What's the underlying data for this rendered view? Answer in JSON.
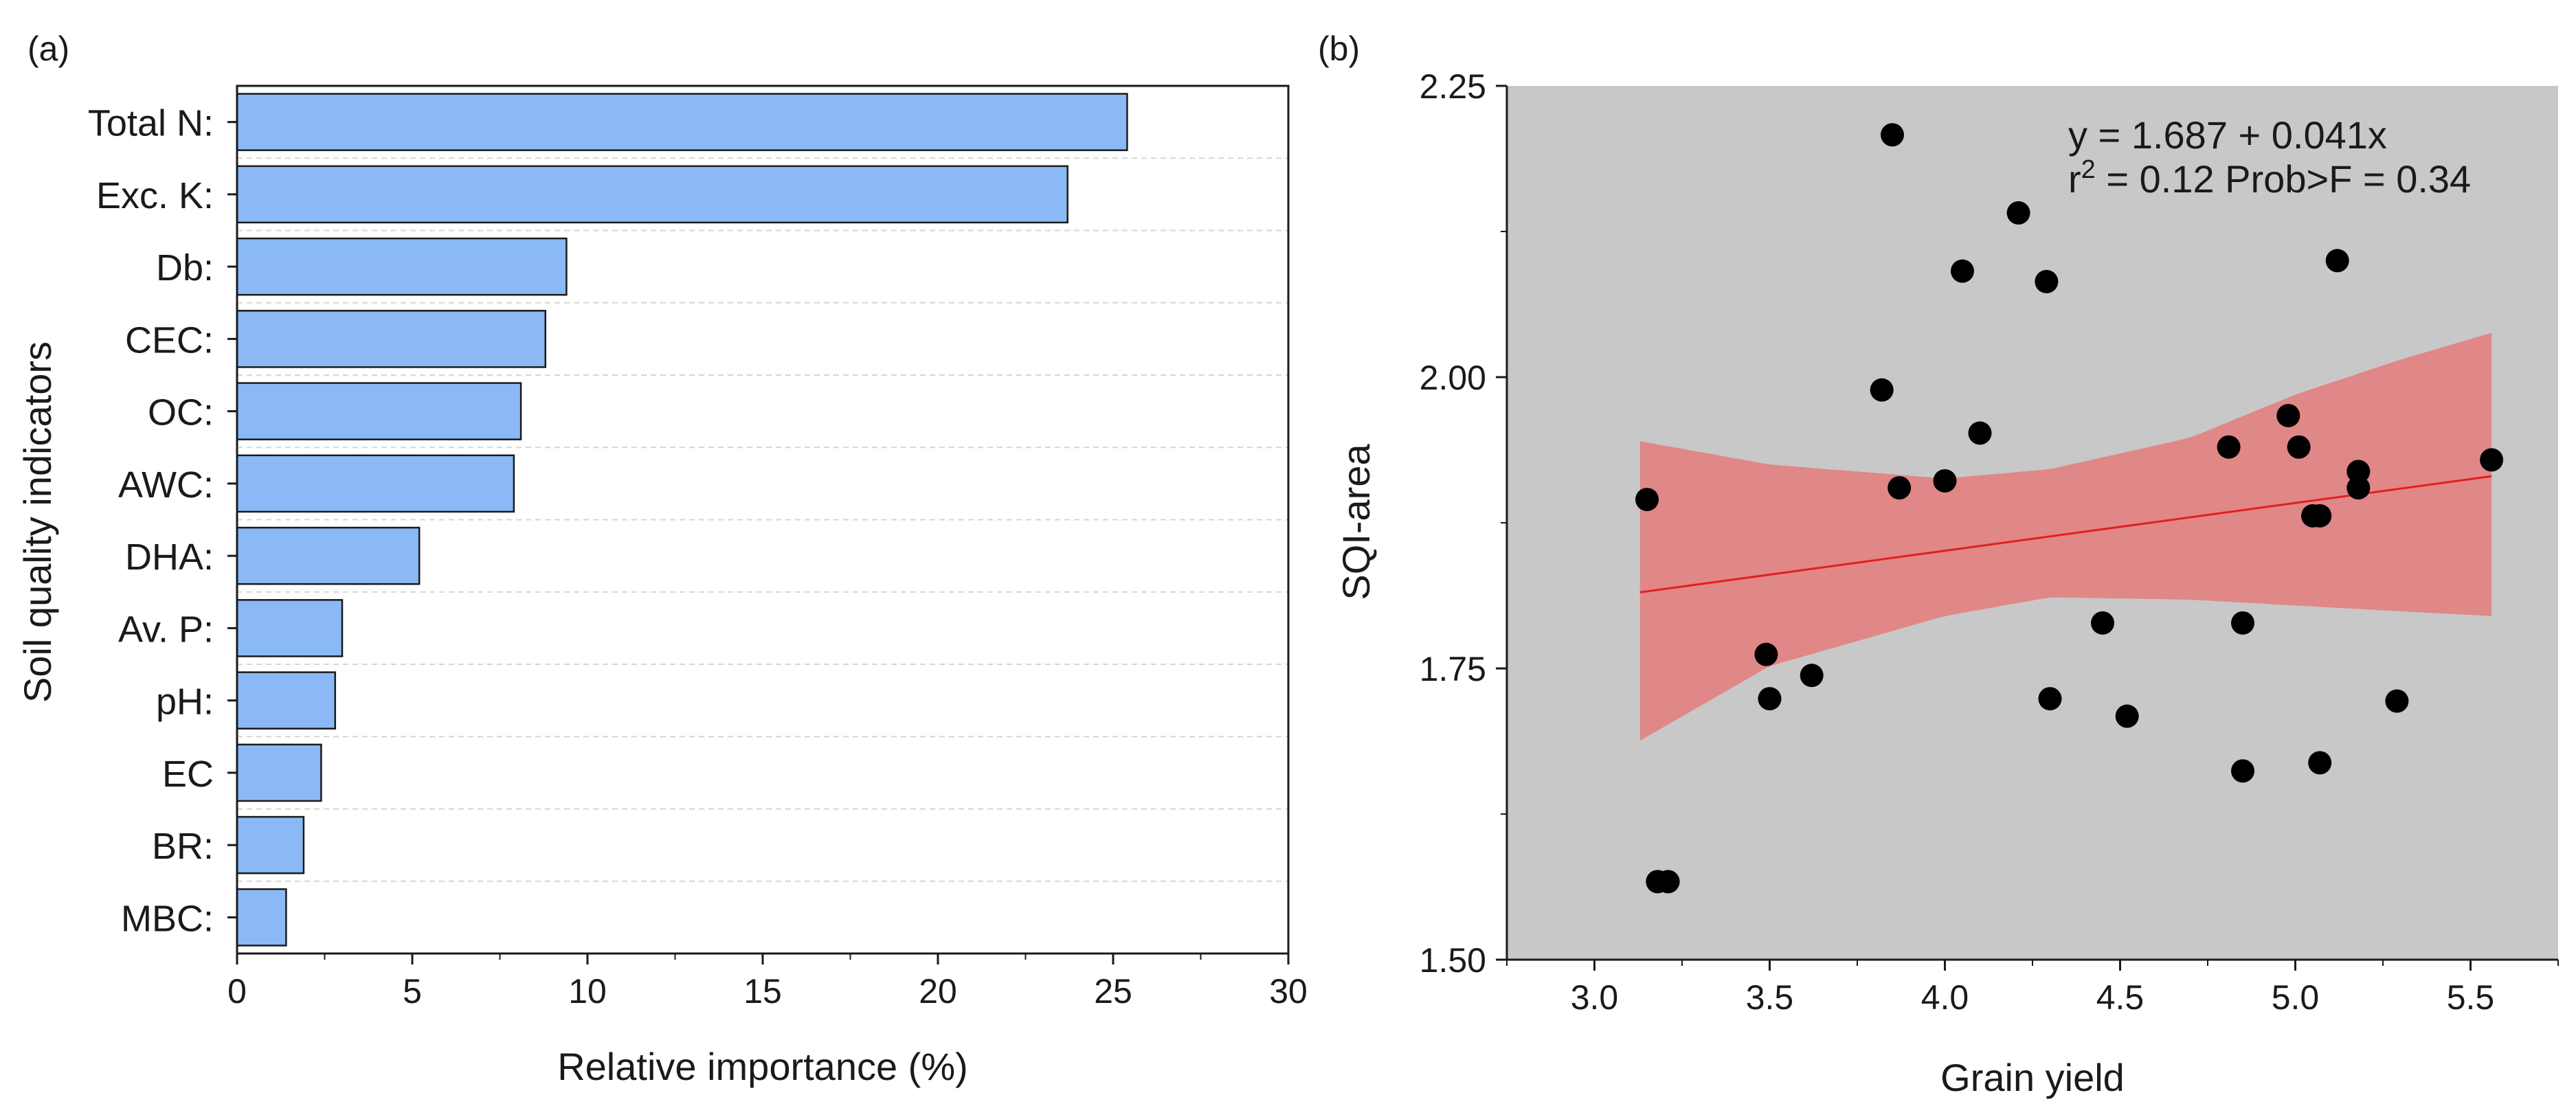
{
  "chart_data": [
    {
      "type": "bar",
      "orientation": "horizontal",
      "panel_label": "(a)",
      "title": "",
      "xlabel": "Relative importance (%)",
      "ylabel": "Soil quality indicators",
      "xlim": [
        0,
        30
      ],
      "xticks": [
        "0",
        "5",
        "10",
        "15",
        "20",
        "25",
        "30"
      ],
      "categories": [
        "Total N:",
        "Exc. K:",
        "Db:",
        "CEC:",
        "OC:",
        "AWC:",
        "DHA:",
        "Av. P:",
        "pH:",
        "EC",
        "BR:",
        "MBC:"
      ],
      "values": [
        25.4,
        23.7,
        9.4,
        8.8,
        8.1,
        7.9,
        5.2,
        3.0,
        2.8,
        2.4,
        1.9,
        1.4
      ],
      "bar_color": "#8ab9f5",
      "grid": "horizontal dashed"
    },
    {
      "type": "scatter",
      "panel_label": "(b)",
      "title": "",
      "xlabel": "Grain yield",
      "ylabel": "SQI-area",
      "xlim": [
        2.75,
        5.75
      ],
      "ylim": [
        1.5,
        2.25
      ],
      "xticks": [
        "3.0",
        "3.5",
        "4.0",
        "4.5",
        "5.0",
        "5.5"
      ],
      "yticks": [
        "1.50",
        "1.75",
        "2.00",
        "2.25"
      ],
      "points": [
        [
          3.15,
          1.895
        ],
        [
          3.18,
          1.567
        ],
        [
          3.21,
          1.567
        ],
        [
          3.49,
          1.762
        ],
        [
          3.5,
          1.724
        ],
        [
          3.62,
          1.744
        ],
        [
          3.82,
          1.989
        ],
        [
          3.85,
          2.208
        ],
        [
          3.87,
          1.905
        ],
        [
          4.0,
          1.911
        ],
        [
          4.05,
          2.091
        ],
        [
          4.1,
          1.952
        ],
        [
          4.21,
          2.141
        ],
        [
          4.29,
          2.082
        ],
        [
          4.3,
          1.724
        ],
        [
          4.45,
          1.789
        ],
        [
          4.52,
          1.709
        ],
        [
          4.81,
          1.94
        ],
        [
          4.85,
          1.789
        ],
        [
          4.85,
          1.662
        ],
        [
          4.98,
          1.967
        ],
        [
          5.01,
          1.94
        ],
        [
          5.05,
          1.881
        ],
        [
          5.07,
          1.881
        ],
        [
          5.07,
          1.669
        ],
        [
          5.12,
          2.1
        ],
        [
          5.18,
          1.919
        ],
        [
          5.18,
          1.905
        ],
        [
          5.29,
          1.722
        ],
        [
          5.56,
          1.929
        ]
      ],
      "fit": {
        "intercept": 1.687,
        "slope": 0.041,
        "x_range": [
          3.13,
          5.56
        ]
      },
      "confidence_band": {
        "x": [
          3.13,
          3.5,
          4.0,
          4.3,
          4.7,
          5.0,
          5.3,
          5.56
        ],
        "upper": [
          1.945,
          1.925,
          1.913,
          1.921,
          1.948,
          1.985,
          2.015,
          2.038
        ],
        "lower": [
          1.688,
          1.752,
          1.795,
          1.811,
          1.809,
          1.804,
          1.799,
          1.795
        ]
      },
      "equation": "y = 1.687 + 0.041x",
      "stats_text_prefix": "r",
      "stats_text_sup": "2",
      "stats_text_rest": " = 0.12 Prob>F = 0.34",
      "plot_background": "#c8c8c8",
      "band_color": "#e08787",
      "fit_color": "#e02020",
      "point_color": "#000000"
    }
  ]
}
